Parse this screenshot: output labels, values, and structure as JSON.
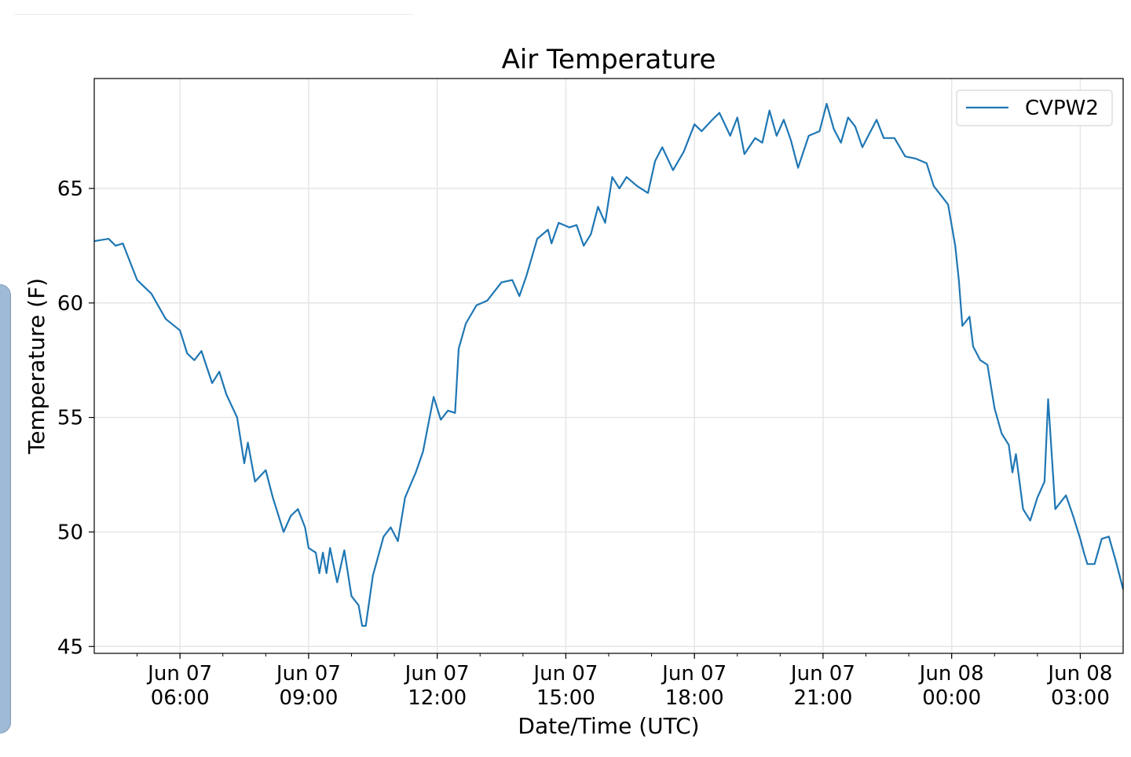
{
  "chart_data": {
    "type": "line",
    "title": "Air Temperature",
    "xlabel": "Date/Time (UTC)",
    "ylabel": "Temperature (F)",
    "x_range": [
      "2018-06-07 04:00",
      "2018-06-08 04:00"
    ],
    "ylim": [
      44.7,
      69.8
    ],
    "grid": true,
    "legend_position": "top-right",
    "x_ticks": [
      {
        "time": "2018-06-07 06:00",
        "line1": "Jun 07",
        "line2": "06:00"
      },
      {
        "time": "2018-06-07 09:00",
        "line1": "Jun 07",
        "line2": "09:00"
      },
      {
        "time": "2018-06-07 12:00",
        "line1": "Jun 07",
        "line2": "12:00"
      },
      {
        "time": "2018-06-07 15:00",
        "line1": "Jun 07",
        "line2": "15:00"
      },
      {
        "time": "2018-06-07 18:00",
        "line1": "Jun 07",
        "line2": "18:00"
      },
      {
        "time": "2018-06-07 21:00",
        "line1": "Jun 07",
        "line2": "21:00"
      },
      {
        "time": "2018-06-08 00:00",
        "line1": "Jun 08",
        "line2": "00:00"
      },
      {
        "time": "2018-06-08 03:00",
        "line1": "Jun 08",
        "line2": "03:00"
      }
    ],
    "y_ticks": [
      45,
      50,
      55,
      60,
      65
    ],
    "series": [
      {
        "name": "CVPW2",
        "color": "#1f77b4",
        "points": [
          [
            "2018-06-07 04:00",
            62.7
          ],
          [
            "2018-06-07 04:20",
            62.8
          ],
          [
            "2018-06-07 04:30",
            62.5
          ],
          [
            "2018-06-07 04:40",
            62.6
          ],
          [
            "2018-06-07 05:00",
            61.0
          ],
          [
            "2018-06-07 05:20",
            60.4
          ],
          [
            "2018-06-07 05:40",
            59.3
          ],
          [
            "2018-06-07 06:00",
            58.8
          ],
          [
            "2018-06-07 06:10",
            57.8
          ],
          [
            "2018-06-07 06:20",
            57.5
          ],
          [
            "2018-06-07 06:30",
            57.9
          ],
          [
            "2018-06-07 06:45",
            56.5
          ],
          [
            "2018-06-07 06:55",
            57.0
          ],
          [
            "2018-06-07 07:05",
            56.0
          ],
          [
            "2018-06-07 07:20",
            55.0
          ],
          [
            "2018-06-07 07:30",
            53.0
          ],
          [
            "2018-06-07 07:35",
            53.9
          ],
          [
            "2018-06-07 07:45",
            52.2
          ],
          [
            "2018-06-07 08:00",
            52.7
          ],
          [
            "2018-06-07 08:10",
            51.5
          ],
          [
            "2018-06-07 08:25",
            50.0
          ],
          [
            "2018-06-07 08:35",
            50.7
          ],
          [
            "2018-06-07 08:45",
            51.0
          ],
          [
            "2018-06-07 08:55",
            50.2
          ],
          [
            "2018-06-07 09:00",
            49.3
          ],
          [
            "2018-06-07 09:10",
            49.1
          ],
          [
            "2018-06-07 09:15",
            48.2
          ],
          [
            "2018-06-07 09:20",
            49.1
          ],
          [
            "2018-06-07 09:25",
            48.2
          ],
          [
            "2018-06-07 09:30",
            49.3
          ],
          [
            "2018-06-07 09:40",
            47.8
          ],
          [
            "2018-06-07 09:50",
            49.2
          ],
          [
            "2018-06-07 10:00",
            47.2
          ],
          [
            "2018-06-07 10:10",
            46.8
          ],
          [
            "2018-06-07 10:15",
            45.9
          ],
          [
            "2018-06-07 10:20",
            45.9
          ],
          [
            "2018-06-07 10:30",
            48.1
          ],
          [
            "2018-06-07 10:45",
            49.8
          ],
          [
            "2018-06-07 10:55",
            50.2
          ],
          [
            "2018-06-07 11:05",
            49.6
          ],
          [
            "2018-06-07 11:15",
            51.5
          ],
          [
            "2018-06-07 11:30",
            52.6
          ],
          [
            "2018-06-07 11:40",
            53.5
          ],
          [
            "2018-06-07 11:55",
            55.9
          ],
          [
            "2018-06-07 12:05",
            54.9
          ],
          [
            "2018-06-07 12:15",
            55.3
          ],
          [
            "2018-06-07 12:25",
            55.2
          ],
          [
            "2018-06-07 12:30",
            58.0
          ],
          [
            "2018-06-07 12:40",
            59.1
          ],
          [
            "2018-06-07 12:55",
            59.9
          ],
          [
            "2018-06-07 13:10",
            60.1
          ],
          [
            "2018-06-07 13:20",
            60.5
          ],
          [
            "2018-06-07 13:30",
            60.9
          ],
          [
            "2018-06-07 13:45",
            61.0
          ],
          [
            "2018-06-07 13:55",
            60.3
          ],
          [
            "2018-06-07 14:05",
            61.2
          ],
          [
            "2018-06-07 14:20",
            62.8
          ],
          [
            "2018-06-07 14:35",
            63.2
          ],
          [
            "2018-06-07 14:40",
            62.6
          ],
          [
            "2018-06-07 14:50",
            63.5
          ],
          [
            "2018-06-07 15:05",
            63.3
          ],
          [
            "2018-06-07 15:15",
            63.4
          ],
          [
            "2018-06-07 15:25",
            62.5
          ],
          [
            "2018-06-07 15:35",
            63.0
          ],
          [
            "2018-06-07 15:45",
            64.2
          ],
          [
            "2018-06-07 15:55",
            63.5
          ],
          [
            "2018-06-07 16:05",
            65.5
          ],
          [
            "2018-06-07 16:15",
            65.0
          ],
          [
            "2018-06-07 16:25",
            65.5
          ],
          [
            "2018-06-07 16:40",
            65.1
          ],
          [
            "2018-06-07 16:55",
            64.8
          ],
          [
            "2018-06-07 17:05",
            66.2
          ],
          [
            "2018-06-07 17:15",
            66.8
          ],
          [
            "2018-06-07 17:30",
            65.8
          ],
          [
            "2018-06-07 17:45",
            66.6
          ],
          [
            "2018-06-07 18:00",
            67.8
          ],
          [
            "2018-06-07 18:10",
            67.5
          ],
          [
            "2018-06-07 18:25",
            68.0
          ],
          [
            "2018-06-07 18:35",
            68.3
          ],
          [
            "2018-06-07 18:50",
            67.3
          ],
          [
            "2018-06-07 19:00",
            68.1
          ],
          [
            "2018-06-07 19:10",
            66.5
          ],
          [
            "2018-06-07 19:25",
            67.2
          ],
          [
            "2018-06-07 19:35",
            67.0
          ],
          [
            "2018-06-07 19:45",
            68.4
          ],
          [
            "2018-06-07 19:55",
            67.3
          ],
          [
            "2018-06-07 20:05",
            68.0
          ],
          [
            "2018-06-07 20:15",
            67.1
          ],
          [
            "2018-06-07 20:25",
            65.9
          ],
          [
            "2018-06-07 20:40",
            67.3
          ],
          [
            "2018-06-07 20:55",
            67.5
          ],
          [
            "2018-06-07 21:05",
            68.7
          ],
          [
            "2018-06-07 21:15",
            67.6
          ],
          [
            "2018-06-07 21:25",
            67.0
          ],
          [
            "2018-06-07 21:35",
            68.1
          ],
          [
            "2018-06-07 21:45",
            67.7
          ],
          [
            "2018-06-07 21:55",
            66.8
          ],
          [
            "2018-06-07 22:05",
            67.4
          ],
          [
            "2018-06-07 22:15",
            68.0
          ],
          [
            "2018-06-07 22:25",
            67.2
          ],
          [
            "2018-06-07 22:40",
            67.2
          ],
          [
            "2018-06-07 22:55",
            66.4
          ],
          [
            "2018-06-07 23:10",
            66.3
          ],
          [
            "2018-06-07 23:25",
            66.1
          ],
          [
            "2018-06-07 23:35",
            65.1
          ],
          [
            "2018-06-07 23:45",
            64.7
          ],
          [
            "2018-06-07 23:55",
            64.3
          ],
          [
            "2018-06-08 00:05",
            62.5
          ],
          [
            "2018-06-08 00:10",
            61.0
          ],
          [
            "2018-06-08 00:15",
            59.0
          ],
          [
            "2018-06-08 00:25",
            59.4
          ],
          [
            "2018-06-08 00:30",
            58.1
          ],
          [
            "2018-06-08 00:40",
            57.5
          ],
          [
            "2018-06-08 00:50",
            57.3
          ],
          [
            "2018-06-08 01:00",
            55.4
          ],
          [
            "2018-06-08 01:10",
            54.3
          ],
          [
            "2018-06-08 01:20",
            53.8
          ],
          [
            "2018-06-08 01:25",
            52.6
          ],
          [
            "2018-06-08 01:30",
            53.4
          ],
          [
            "2018-06-08 01:40",
            51.0
          ],
          [
            "2018-06-08 01:50",
            50.5
          ],
          [
            "2018-06-08 02:00",
            51.5
          ],
          [
            "2018-06-08 02:10",
            52.2
          ],
          [
            "2018-06-08 02:15",
            55.8
          ],
          [
            "2018-06-08 02:25",
            51.0
          ],
          [
            "2018-06-08 02:30",
            51.2
          ],
          [
            "2018-06-08 02:40",
            51.6
          ],
          [
            "2018-06-08 02:50",
            50.7
          ],
          [
            "2018-06-08 03:00",
            49.7
          ],
          [
            "2018-06-08 03:05",
            49.1
          ],
          [
            "2018-06-08 03:10",
            48.6
          ],
          [
            "2018-06-08 03:20",
            48.6
          ],
          [
            "2018-06-08 03:30",
            49.7
          ],
          [
            "2018-06-08 03:40",
            49.8
          ],
          [
            "2018-06-08 03:50",
            48.7
          ],
          [
            "2018-06-08 04:00",
            47.5
          ]
        ]
      }
    ]
  }
}
